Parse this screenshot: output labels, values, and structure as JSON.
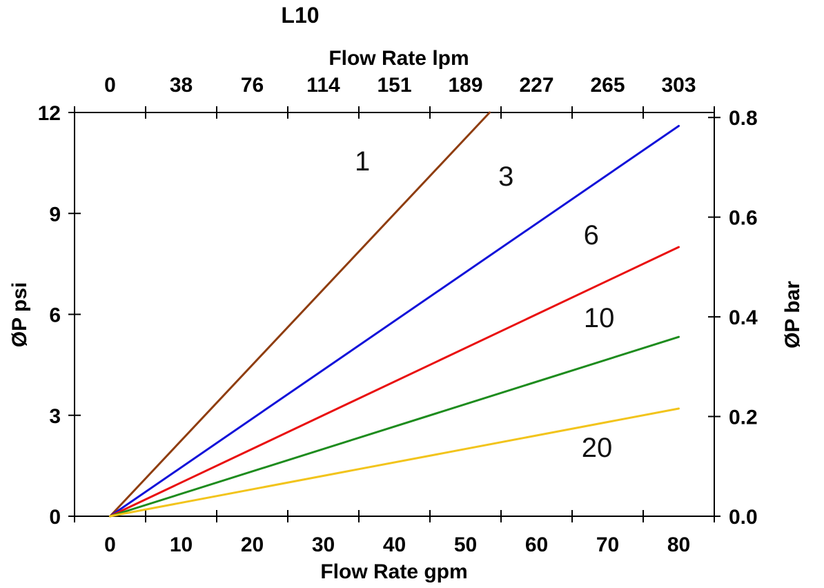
{
  "page": {
    "background": "#ffffff"
  },
  "chart_data": {
    "type": "line",
    "title": "L10",
    "x_bottom": {
      "label": "Flow Rate gpm",
      "ticks": [
        0,
        10,
        20,
        30,
        40,
        50,
        60,
        70,
        80
      ],
      "lim": [
        0,
        80
      ],
      "tick_style": "boundary-ticks-with-centered-labels"
    },
    "x_top": {
      "label": "Flow Rate lpm",
      "ticks": [
        0,
        38,
        76,
        114,
        151,
        189,
        227,
        265,
        303
      ],
      "lim": [
        0,
        303
      ]
    },
    "y_left": {
      "label": "ØP psi",
      "ticks": [
        0,
        3,
        6,
        9,
        12
      ],
      "lim": [
        0,
        12
      ]
    },
    "y_right": {
      "label": "ØP bar",
      "ticks": [
        "0.0",
        "0.2",
        "0.4",
        "0.6",
        "0.8"
      ],
      "lim": [
        0,
        0.81
      ]
    },
    "grid": false,
    "legend": "inline-curve-labels",
    "axis_color": "#000000",
    "series": [
      {
        "label": "1",
        "color": "#8F3D0F",
        "points": [
          [
            0,
            0
          ],
          [
            53.4,
            12.0
          ]
        ],
        "label_pos": [
          35.5,
          10.56
        ]
      },
      {
        "label": "3",
        "color": "#1212D9",
        "points": [
          [
            0,
            0
          ],
          [
            80,
            11.6
          ]
        ],
        "label_pos": [
          55.7,
          10.11
        ]
      },
      {
        "label": "6",
        "color": "#E90F0F",
        "points": [
          [
            0,
            0
          ],
          [
            80,
            8.0
          ]
        ],
        "label_pos": [
          67.7,
          8.37
        ]
      },
      {
        "label": "10",
        "color": "#1E8C1E",
        "points": [
          [
            0,
            0
          ],
          [
            80,
            5.33
          ]
        ],
        "label_pos": [
          68.8,
          5.91
        ]
      },
      {
        "label": "20",
        "color": "#F2C41C",
        "points": [
          [
            0,
            0
          ],
          [
            80,
            3.2
          ]
        ],
        "label_pos": [
          68.5,
          2.05
        ]
      }
    ]
  }
}
